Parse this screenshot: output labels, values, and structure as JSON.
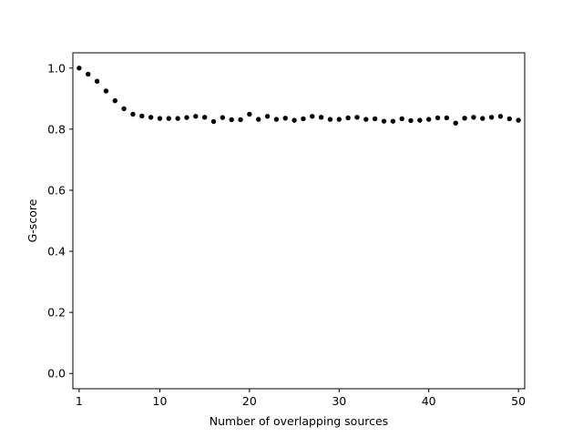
{
  "chart_data": {
    "type": "scatter",
    "title": "",
    "xlabel": "Number of overlapping sources",
    "ylabel": "G-score",
    "xlim": [
      0.3,
      50.7
    ],
    "ylim": [
      -0.05,
      1.05
    ],
    "xticks": [
      1,
      10,
      20,
      30,
      40,
      50
    ],
    "yticks": [
      0.0,
      0.2,
      0.4,
      0.6,
      0.8,
      1.0
    ],
    "ytick_labels": [
      "0.0",
      "0.2",
      "0.4",
      "0.6",
      "0.8",
      "1.0"
    ],
    "grid": false,
    "marker_color": "#000000",
    "series": [
      {
        "x": [
          1,
          2,
          3,
          4,
          5,
          6,
          7,
          8,
          9,
          10,
          11,
          12,
          13,
          14,
          15,
          16,
          17,
          18,
          19,
          20,
          21,
          22,
          23,
          24,
          25,
          26,
          27,
          28,
          29,
          30,
          31,
          32,
          33,
          34,
          35,
          36,
          37,
          38,
          39,
          40,
          41,
          42,
          43,
          44,
          45,
          46,
          47,
          48,
          49,
          50
        ],
        "y": [
          1.0,
          0.98,
          0.957,
          0.925,
          0.893,
          0.867,
          0.849,
          0.843,
          0.839,
          0.835,
          0.835,
          0.835,
          0.838,
          0.842,
          0.839,
          0.825,
          0.838,
          0.831,
          0.831,
          0.849,
          0.832,
          0.842,
          0.832,
          0.836,
          0.829,
          0.834,
          0.842,
          0.839,
          0.832,
          0.832,
          0.837,
          0.839,
          0.832,
          0.834,
          0.826,
          0.826,
          0.834,
          0.828,
          0.829,
          0.832,
          0.837,
          0.837,
          0.82,
          0.836,
          0.839,
          0.835,
          0.839,
          0.842,
          0.834,
          0.829
        ]
      }
    ]
  }
}
